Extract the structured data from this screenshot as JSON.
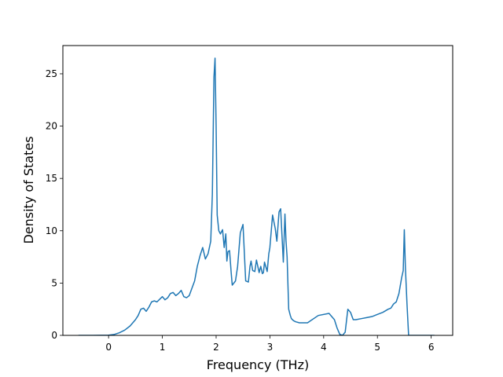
{
  "chart_data": {
    "type": "line",
    "title": "",
    "xlabel": "Frequency (THz)",
    "ylabel": "Density of States",
    "xlim": [
      -0.85,
      6.4
    ],
    "ylim": [
      0,
      27.7
    ],
    "xticks": [
      0,
      1,
      2,
      3,
      4,
      5,
      6
    ],
    "yticks": [
      0,
      5,
      10,
      15,
      20,
      25
    ],
    "grid": false,
    "legend": "none",
    "series": [
      {
        "color": "#1f77b4",
        "x": [
          -0.56,
          -0.3,
          0.0,
          0.1,
          0.2,
          0.3,
          0.4,
          0.5,
          0.55,
          0.6,
          0.65,
          0.7,
          0.75,
          0.8,
          0.85,
          0.9,
          1.0,
          1.05,
          1.1,
          1.15,
          1.2,
          1.25,
          1.3,
          1.35,
          1.4,
          1.45,
          1.5,
          1.55,
          1.6,
          1.65,
          1.7,
          1.75,
          1.8,
          1.85,
          1.9,
          1.93,
          1.96,
          1.98,
          2.0,
          2.02,
          2.05,
          2.08,
          2.12,
          2.15,
          2.18,
          2.2,
          2.22,
          2.25,
          2.28,
          2.3,
          2.33,
          2.36,
          2.4,
          2.45,
          2.5,
          2.55,
          2.6,
          2.63,
          2.65,
          2.68,
          2.72,
          2.75,
          2.8,
          2.83,
          2.86,
          2.88,
          2.9,
          2.95,
          2.98,
          3.0,
          3.05,
          3.1,
          3.13,
          3.17,
          3.2,
          3.25,
          3.28,
          3.3,
          3.32,
          3.35,
          3.38,
          3.4,
          3.44,
          3.48,
          3.55,
          3.7,
          3.9,
          4.1,
          4.2,
          4.25,
          4.3,
          4.35,
          4.4,
          4.45,
          4.5,
          4.55,
          4.6,
          4.7,
          4.8,
          4.9,
          5.0,
          5.1,
          5.2,
          5.25,
          5.3,
          5.35,
          5.4,
          5.45,
          5.48,
          5.5,
          5.52,
          5.55,
          5.58,
          5.65,
          5.8,
          6.06
        ],
        "values": [
          0.0,
          0.0,
          0.02,
          0.08,
          0.25,
          0.5,
          0.9,
          1.5,
          1.9,
          2.5,
          2.6,
          2.3,
          2.7,
          3.2,
          3.3,
          3.2,
          3.7,
          3.4,
          3.6,
          4.0,
          4.1,
          3.8,
          4.0,
          4.3,
          3.7,
          3.6,
          3.8,
          4.5,
          5.2,
          6.6,
          7.6,
          8.4,
          7.3,
          7.8,
          9.0,
          13.5,
          24.7,
          26.5,
          20.0,
          11.5,
          10.0,
          9.7,
          10.1,
          8.4,
          9.7,
          7.1,
          8.0,
          8.1,
          6.0,
          4.8,
          5.0,
          5.2,
          6.6,
          9.8,
          10.6,
          5.2,
          5.1,
          6.6,
          7.1,
          6.2,
          6.1,
          7.2,
          6.0,
          6.6,
          5.9,
          6.0,
          7.0,
          6.1,
          7.8,
          8.4,
          11.5,
          10.2,
          9.0,
          11.8,
          12.1,
          7.0,
          11.6,
          9.0,
          7.5,
          2.5,
          1.9,
          1.6,
          1.4,
          1.3,
          1.2,
          1.2,
          1.9,
          2.1,
          1.5,
          0.7,
          0.1,
          0.0,
          0.3,
          2.5,
          2.2,
          1.5,
          1.5,
          1.6,
          1.7,
          1.8,
          2.0,
          2.2,
          2.5,
          2.6,
          3.0,
          3.2,
          4.0,
          5.5,
          6.2,
          10.1,
          6.5,
          3.0,
          0.0,
          0.0,
          0.0,
          0.0
        ]
      }
    ]
  }
}
